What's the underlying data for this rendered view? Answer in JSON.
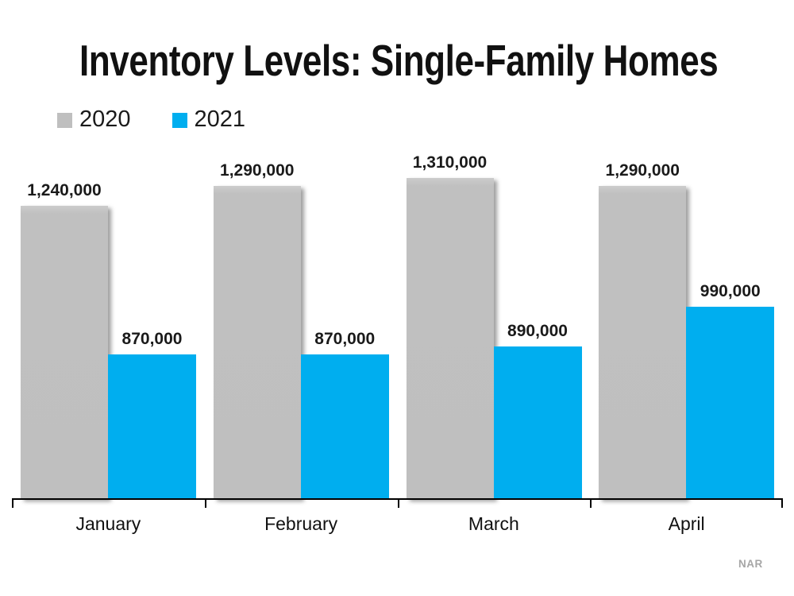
{
  "title": "Inventory Levels: Single-Family Homes",
  "source_note": "NAR",
  "legend": {
    "items": [
      {
        "label": "2020",
        "color": "#bfbfbf"
      },
      {
        "label": "2021",
        "color": "#00aeef"
      }
    ]
  },
  "chart_data": {
    "type": "bar",
    "title": "Inventory Levels: Single-Family Homes",
    "categories": [
      "January",
      "February",
      "March",
      "April"
    ],
    "series": [
      {
        "name": "2020",
        "color": "#bfbfbf",
        "values": [
          1240000,
          1290000,
          1310000,
          1290000
        ]
      },
      {
        "name": "2021",
        "color": "#00aeef",
        "values": [
          870000,
          870000,
          890000,
          990000
        ]
      }
    ],
    "data_labels": [
      [
        "1,240,000",
        "1,290,000",
        "1,310,000",
        "1,290,000"
      ],
      [
        "870,000",
        "870,000",
        "890,000",
        "990,000"
      ]
    ],
    "xlabel": "",
    "ylabel": "",
    "ylim": [
      500000,
      1350000
    ],
    "grid": false,
    "y_axis_visible": false,
    "legend_position": "top-left",
    "source_note": "NAR"
  }
}
